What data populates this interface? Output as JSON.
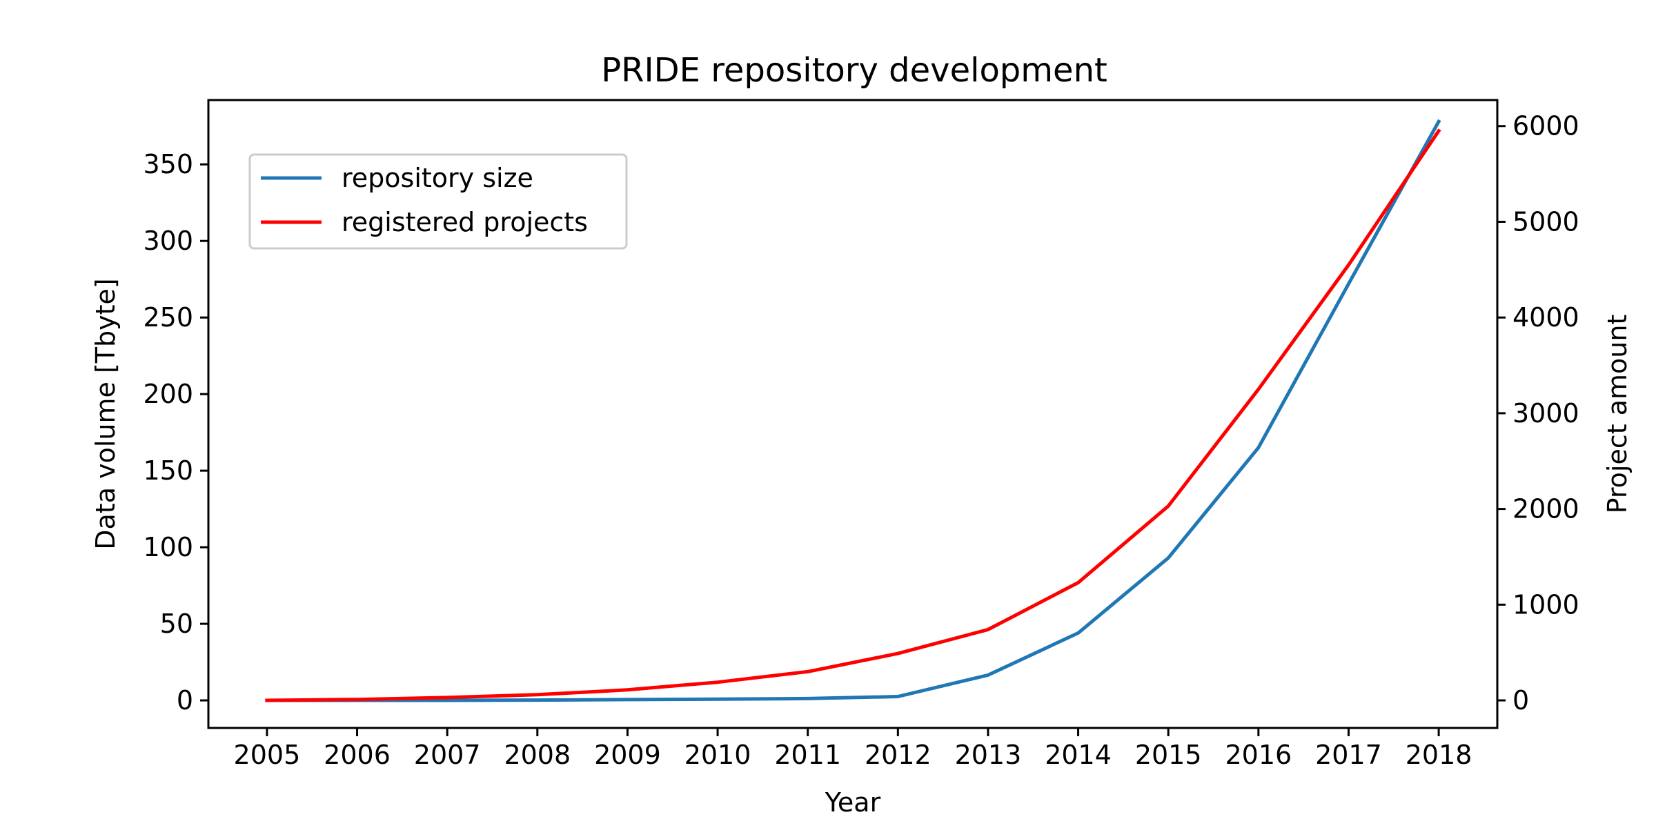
{
  "chart_data": {
    "type": "line",
    "title": "PRIDE repository development",
    "xlabel": "Year",
    "ylabel": "Data volume [Tbyte]",
    "y2label": "Project amount",
    "x": [
      2005,
      2006,
      2007,
      2008,
      2009,
      2010,
      2011,
      2012,
      2013,
      2014,
      2015,
      2016,
      2017,
      2018
    ],
    "xlim": [
      2004.35,
      2018.65
    ],
    "ylim": [
      -18,
      392
    ],
    "y2lim": [
      -288,
      6272
    ],
    "yticks": [
      0,
      50,
      100,
      150,
      200,
      250,
      300,
      350
    ],
    "y2ticks": [
      0,
      1000,
      2000,
      3000,
      4000,
      5000,
      6000
    ],
    "grid": false,
    "legend_position": "top-left",
    "series": [
      {
        "name": "repository size",
        "axis": "left",
        "color": "#1f77b4",
        "values": [
          0,
          0,
          0,
          0.2,
          0.5,
          0.8,
          1.2,
          2.5,
          16.5,
          44,
          93,
          165,
          272,
          378
        ]
      },
      {
        "name": "registered projects",
        "axis": "right",
        "color": "#ff0000",
        "values": [
          0,
          10,
          30,
          60,
          110,
          190,
          300,
          490,
          740,
          1230,
          2030,
          3250,
          4550,
          5950
        ]
      }
    ]
  }
}
